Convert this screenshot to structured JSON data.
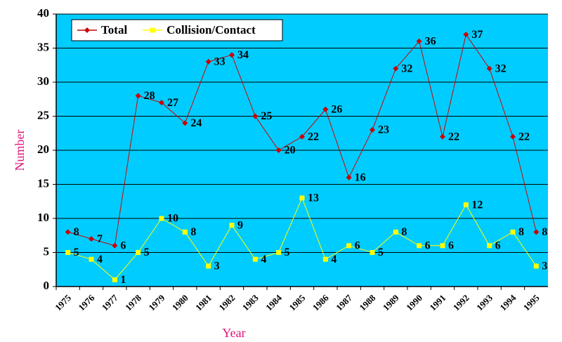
{
  "chart_data": {
    "type": "line",
    "x_label": "Year",
    "y_label": "Number",
    "categories": [
      "1975",
      "1976",
      "1977",
      "1978",
      "1979",
      "1980",
      "1981",
      "1982",
      "1983",
      "1984",
      "1985",
      "1986",
      "1987",
      "1988",
      "1989",
      "1990",
      "1991",
      "1992",
      "1993",
      "1994",
      "1995"
    ],
    "series": [
      {
        "name": "Total",
        "color": "#cc0000",
        "marker": "diamond",
        "values": [
          8,
          7,
          6,
          28,
          27,
          24,
          33,
          34,
          25,
          20,
          22,
          26,
          16,
          23,
          32,
          36,
          22,
          37,
          32,
          22,
          8
        ]
      },
      {
        "name": "Collision/Contact",
        "color": "#ffff00",
        "marker": "square",
        "values": [
          5,
          4,
          1,
          5,
          10,
          8,
          3,
          9,
          4,
          5,
          13,
          4,
          6,
          5,
          8,
          6,
          6,
          12,
          6,
          8,
          3
        ]
      }
    ],
    "ylim": [
      0,
      40
    ],
    "yticks": [
      0,
      5,
      10,
      15,
      20,
      25,
      30,
      35,
      40
    ],
    "grid": true,
    "legend": "upper left",
    "plot_background": "#00ccff"
  }
}
